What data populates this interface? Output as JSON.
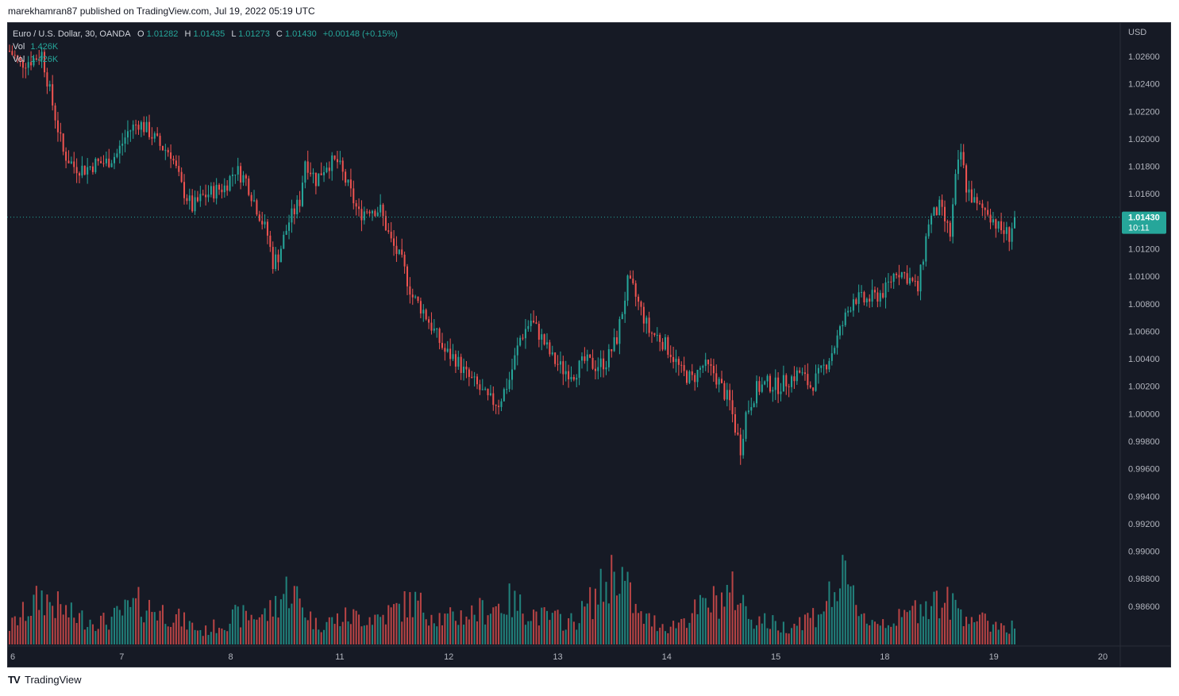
{
  "header": {
    "publisher_line": "marekhamran87 published on TradingView.com, Jul 19, 2022 05:19 UTC"
  },
  "footer": {
    "brand_logo": "TV",
    "brand_name": "TradingView"
  },
  "legend": {
    "symbol": "Euro / U.S. Dollar, 30, OANDA",
    "o_label": "O",
    "o_value": "1.01282",
    "h_label": "H",
    "h_value": "1.01435",
    "l_label": "L",
    "l_value": "1.01273",
    "c_label": "C",
    "c_value": "1.01430",
    "change": "+0.00148 (+0.15%)",
    "vol_label_1": "Vol",
    "vol_value_1": "1.426K",
    "vol_label_2": "Vol",
    "vol_value_2": "1.426K"
  },
  "price_axis": {
    "currency": "USD",
    "last_price_tag": "1.01430",
    "countdown_tag": "10:11"
  },
  "colors": {
    "background": "#161a25",
    "up": "#26a69a",
    "down": "#ef5350",
    "text": "#b2b5be",
    "grid_border": "#2a2e39",
    "last_price_tag_bg": "#26a69a"
  },
  "chart_data": {
    "type": "candlestick",
    "symbol": "EURUSD",
    "interval": "30",
    "ylim": [
      0.9845,
      1.0285
    ],
    "y_ticks": [
      "1.02600",
      "1.02400",
      "1.02200",
      "1.02000",
      "1.01800",
      "1.01600",
      "1.01200",
      "1.01000",
      "1.00800",
      "1.00600",
      "1.00400",
      "1.00200",
      "1.00000",
      "0.99800",
      "0.99600",
      "0.99400",
      "0.99200",
      "0.99000",
      "0.98800",
      "0.98600"
    ],
    "x_ticks": [
      "6",
      "7",
      "8",
      "11",
      "12",
      "13",
      "14",
      "15",
      "18",
      "19",
      "20"
    ],
    "last_close": 1.0143,
    "close_path_anchors": [
      [
        0,
        1.0264
      ],
      [
        4,
        1.0255
      ],
      [
        9,
        1.0258
      ],
      [
        12,
        1.0262
      ],
      [
        16,
        1.0225
      ],
      [
        20,
        1.019
      ],
      [
        24,
        1.018
      ],
      [
        28,
        1.0178
      ],
      [
        32,
        1.0182
      ],
      [
        36,
        1.0183
      ],
      [
        40,
        1.0189
      ],
      [
        44,
        1.0205
      ],
      [
        48,
        1.0212
      ],
      [
        52,
        1.0205
      ],
      [
        56,
        1.0195
      ],
      [
        60,
        1.019
      ],
      [
        64,
        1.0165
      ],
      [
        68,
        1.015
      ],
      [
        72,
        1.0158
      ],
      [
        76,
        1.0162
      ],
      [
        80,
        1.0165
      ],
      [
        84,
        1.0178
      ],
      [
        88,
        1.017
      ],
      [
        92,
        1.015
      ],
      [
        96,
        1.013
      ],
      [
        98,
        1.011
      ],
      [
        100,
        1.0115
      ],
      [
        104,
        1.014
      ],
      [
        108,
        1.0155
      ],
      [
        110,
        1.0185
      ],
      [
        114,
        1.017
      ],
      [
        118,
        1.0182
      ],
      [
        122,
        1.0183
      ],
      [
        126,
        1.0165
      ],
      [
        130,
        1.0145
      ],
      [
        134,
        1.015
      ],
      [
        138,
        1.0148
      ],
      [
        142,
        1.0125
      ],
      [
        146,
        1.011
      ],
      [
        150,
        1.0085
      ],
      [
        154,
        1.0075
      ],
      [
        158,
        1.006
      ],
      [
        162,
        1.0045
      ],
      [
        166,
        1.004
      ],
      [
        170,
        1.0028
      ],
      [
        174,
        1.002
      ],
      [
        178,
        1.001
      ],
      [
        182,
        1.0008
      ],
      [
        186,
        1.0025
      ],
      [
        190,
        1.0055
      ],
      [
        194,
        1.0068
      ],
      [
        198,
        1.0055
      ],
      [
        202,
        1.004
      ],
      [
        206,
        1.0032
      ],
      [
        210,
        1.003
      ],
      [
        214,
        1.0038
      ],
      [
        218,
        1.0035
      ],
      [
        222,
        1.0038
      ],
      [
        226,
        1.0055
      ],
      [
        228,
        1.0075
      ],
      [
        230,
        1.0095
      ],
      [
        232,
        1.009
      ],
      [
        234,
        1.008
      ],
      [
        238,
        1.006
      ],
      [
        242,
        1.0055
      ],
      [
        246,
        1.0045
      ],
      [
        250,
        1.003
      ],
      [
        254,
        1.0025
      ],
      [
        258,
        1.0035
      ],
      [
        262,
        1.003
      ],
      [
        266,
        1.0015
      ],
      [
        268,
        1.0008
      ],
      [
        270,
        0.999
      ],
      [
        272,
        0.9975
      ],
      [
        274,
        1.0
      ],
      [
        278,
        1.0018
      ],
      [
        282,
        1.0022
      ],
      [
        286,
        1.002
      ],
      [
        290,
        1.0025
      ],
      [
        294,
        1.003
      ],
      [
        298,
        1.002
      ],
      [
        302,
        1.003
      ],
      [
        306,
        1.0045
      ],
      [
        310,
        1.0065
      ],
      [
        314,
        1.0085
      ],
      [
        318,
        1.0082
      ],
      [
        322,
        1.0085
      ],
      [
        326,
        1.009
      ],
      [
        330,
        1.0105
      ],
      [
        334,
        1.01
      ],
      [
        338,
        1.009
      ],
      [
        342,
        1.014
      ],
      [
        346,
        1.015
      ],
      [
        350,
        1.013
      ],
      [
        352,
        1.017
      ],
      [
        354,
        1.019
      ],
      [
        356,
        1.0165
      ],
      [
        360,
        1.015
      ],
      [
        364,
        1.0148
      ],
      [
        368,
        1.0135
      ],
      [
        372,
        1.013
      ],
      [
        374,
        1.0143
      ]
    ],
    "volume_profile_anchors": [
      [
        0,
        0.35
      ],
      [
        12,
        0.95
      ],
      [
        24,
        0.55
      ],
      [
        36,
        0.45
      ],
      [
        48,
        0.8
      ],
      [
        60,
        0.6
      ],
      [
        72,
        0.25
      ],
      [
        84,
        0.55
      ],
      [
        96,
        0.6
      ],
      [
        104,
        1.15
      ],
      [
        114,
        0.4
      ],
      [
        126,
        0.55
      ],
      [
        138,
        0.55
      ],
      [
        150,
        0.85
      ],
      [
        162,
        0.5
      ],
      [
        174,
        0.65
      ],
      [
        186,
        0.85
      ],
      [
        198,
        0.55
      ],
      [
        210,
        0.45
      ],
      [
        222,
        1.2
      ],
      [
        226,
        1.6
      ],
      [
        234,
        0.55
      ],
      [
        246,
        0.35
      ],
      [
        258,
        0.75
      ],
      [
        270,
        1.05
      ],
      [
        276,
        0.55
      ],
      [
        288,
        0.35
      ],
      [
        300,
        0.6
      ],
      [
        310,
        1.25
      ],
      [
        320,
        0.45
      ],
      [
        332,
        0.5
      ],
      [
        342,
        0.9
      ],
      [
        350,
        0.8
      ],
      [
        362,
        0.45
      ],
      [
        374,
        0.35
      ]
    ]
  }
}
